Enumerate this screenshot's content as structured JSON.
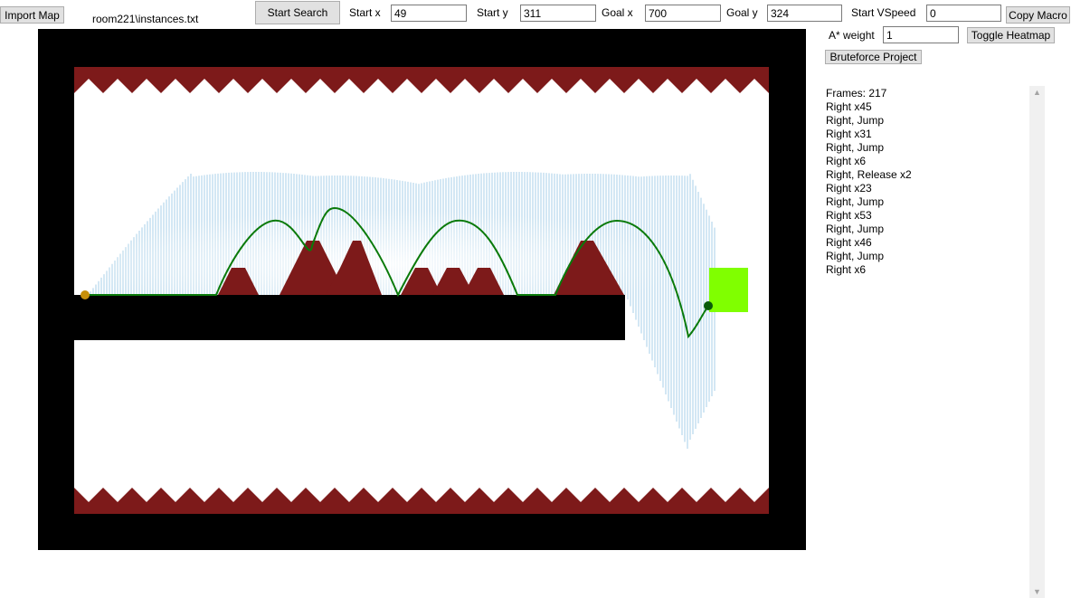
{
  "toolbar": {
    "import_map_label": "Import Map",
    "file_path": "room221\\instances.txt",
    "start_search_label": "Start Search",
    "start_x_label": "Start x",
    "start_x_value": "49",
    "start_y_label": "Start y",
    "start_y_value": "311",
    "goal_x_label": "Goal x",
    "goal_x_value": "700",
    "goal_y_label": "Goal y",
    "goal_y_value": "324",
    "start_vspeed_label": "Start VSpeed",
    "start_vspeed_value": "0",
    "copy_macro_label": "Copy Macro",
    "astar_weight_label": "A* weight",
    "astar_weight_value": "1",
    "toggle_heatmap_label": "Toggle Heatmap",
    "bruteforce_label": "Bruteforce Project"
  },
  "output_lines": [
    "Frames: 217",
    "Right x45",
    "Right, Jump",
    "Right x31",
    "Right, Jump",
    "Right x6",
    "Right, Release x2",
    "Right x23",
    "Right, Jump",
    "Right x53",
    "Right, Jump",
    "Right x46",
    "Right, Jump",
    "Right x6"
  ],
  "icons": {
    "scroll_up": "scroll-up-arrow-icon",
    "scroll_down": "scroll-down-arrow-icon"
  },
  "colors": {
    "wall": "#000000",
    "spike": "#7d1a1a",
    "goal": "#80ff00",
    "path": "#0a7a0a",
    "start_marker": "#c8900a",
    "end_marker": "#0a5a0a"
  }
}
